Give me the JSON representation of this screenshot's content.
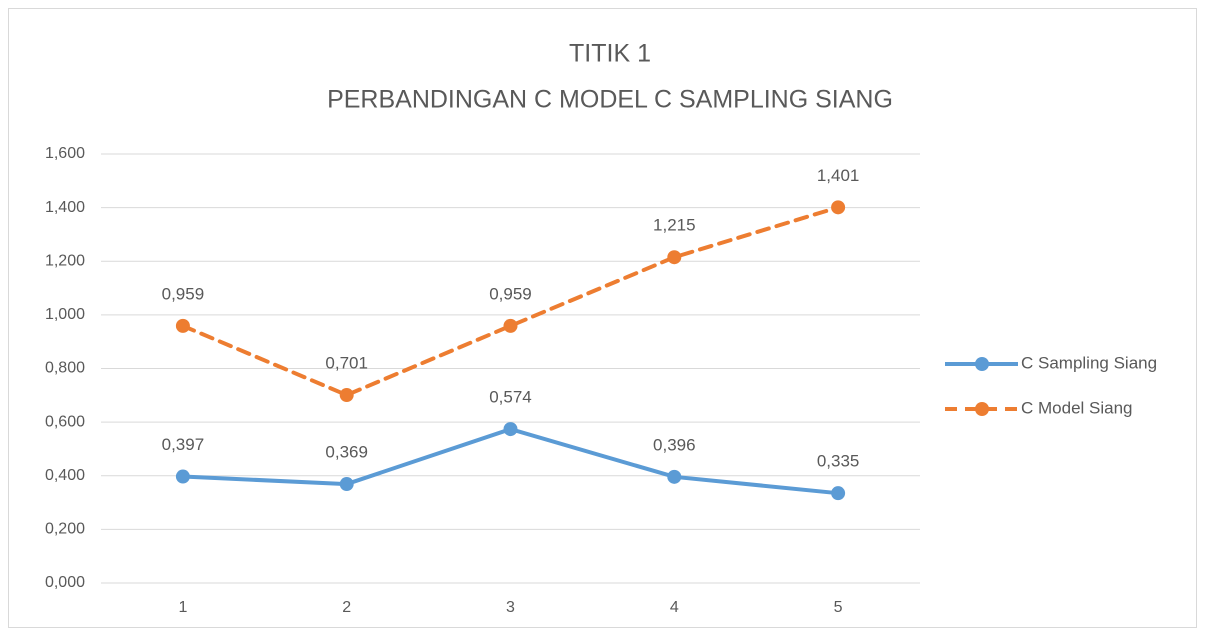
{
  "chart_data": {
    "type": "line",
    "title": [
      "TITIK 1",
      "PERBANDINGAN C MODEL C SAMPLING SIANG"
    ],
    "categories": [
      "1",
      "2",
      "3",
      "4",
      "5"
    ],
    "series": [
      {
        "name": "C Sampling Siang",
        "color": "#5b9bd5",
        "dashed": false,
        "values": [
          0.397,
          0.369,
          0.574,
          0.396,
          0.335
        ],
        "value_labels": [
          "0,397",
          "0,369",
          "0,574",
          "0,396",
          "0,335"
        ]
      },
      {
        "name": "C Model Siang",
        "color": "#ed7d31",
        "dashed": true,
        "values": [
          0.959,
          0.701,
          0.959,
          1.215,
          1.401
        ],
        "value_labels": [
          "0,959",
          "0,701",
          "0,959",
          "1,215",
          "1,401"
        ]
      }
    ],
    "ylim": [
      0,
      1.6
    ],
    "yticks": [
      {
        "value": 0,
        "label": "0,000"
      },
      {
        "value": 0.2,
        "label": "0,200"
      },
      {
        "value": 0.4,
        "label": "0,400"
      },
      {
        "value": 0.6,
        "label": "0,600"
      },
      {
        "value": 0.8,
        "label": "0,800"
      },
      {
        "value": 1.0,
        "label": "1,000"
      },
      {
        "value": 1.2,
        "label": "1,200"
      },
      {
        "value": 1.4,
        "label": "1,400"
      },
      {
        "value": 1.6,
        "label": "1,600"
      }
    ],
    "grid": true,
    "legend": "right"
  }
}
